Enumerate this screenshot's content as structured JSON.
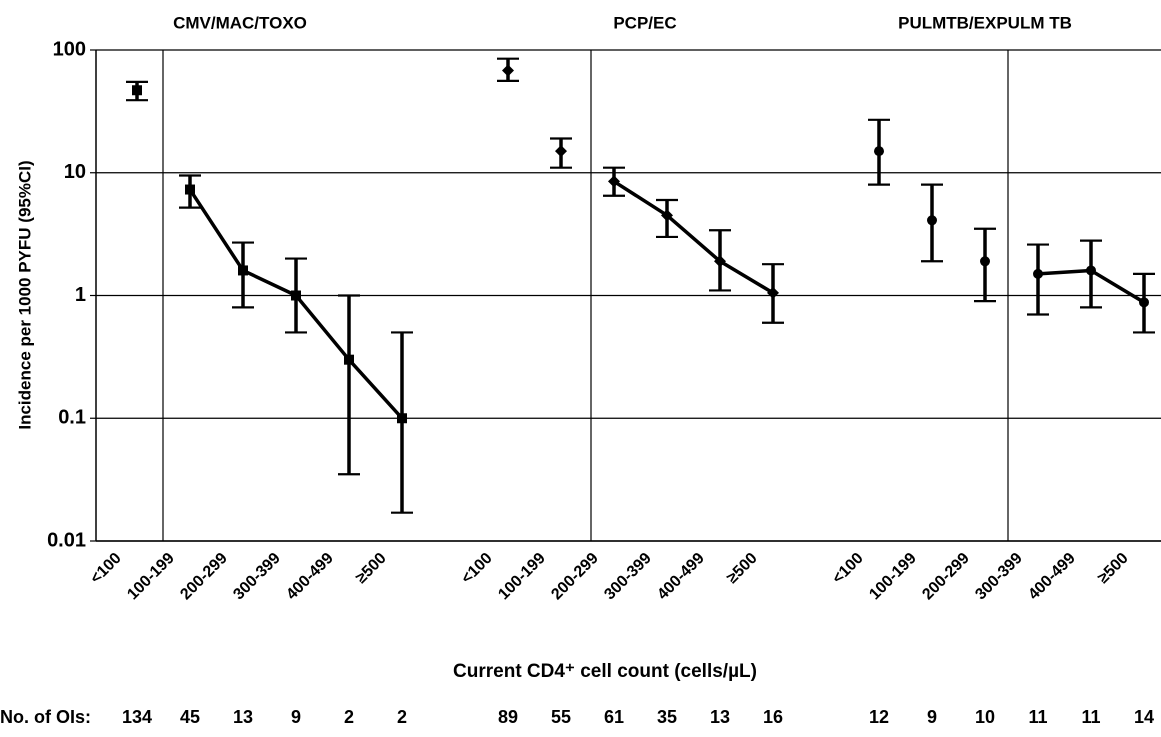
{
  "chart_data": {
    "type": "line",
    "x_label": "Current CD4⁺ cell count (cells/µL)",
    "y_label": "Incidence per 1000 PYFU (95%CI)",
    "groups": [
      "CMV/MAC/TOXO",
      "PCP/EC",
      "PULMTB/EXPULM TB"
    ],
    "categories": [
      "<100",
      "100-199",
      "200-299",
      "300-399",
      "400-499",
      "≥500",
      null,
      "<100",
      "100-199",
      "200-299",
      "300-399",
      "400-499",
      "≥500",
      null,
      "<100",
      "100-199",
      "200-299",
      "300-399",
      "400-499",
      "≥500"
    ],
    "counts_label": "No. of OIs:",
    "counts": [
      134,
      45,
      13,
      9,
      2,
      2,
      null,
      89,
      55,
      61,
      35,
      13,
      16,
      null,
      12,
      9,
      10,
      11,
      11,
      14
    ],
    "log_scale": true,
    "ylim": [
      0.01,
      100
    ],
    "yticks": [
      0.01,
      0.1,
      1,
      10,
      100
    ],
    "grid": true,
    "series": [
      {
        "marker": "square",
        "line": false,
        "color": "#000000",
        "values": [
          47,
          null,
          null,
          null,
          null,
          null,
          null,
          null,
          null,
          null,
          null,
          null,
          null,
          null,
          null,
          null,
          null,
          null,
          null,
          null
        ],
        "lower": [
          39,
          null,
          null,
          null,
          null,
          null,
          null,
          null,
          null,
          null,
          null,
          null,
          null,
          null,
          null,
          null,
          null,
          null,
          null,
          null
        ],
        "upper": [
          55,
          null,
          null,
          null,
          null,
          null,
          null,
          null,
          null,
          null,
          null,
          null,
          null,
          null,
          null,
          null,
          null,
          null,
          null,
          null
        ]
      },
      {
        "marker": "square",
        "line": true,
        "color": "#000000",
        "values": [
          null,
          7.3,
          1.6,
          1.0,
          0.3,
          0.1,
          null,
          null,
          null,
          null,
          null,
          null,
          null,
          null,
          null,
          null,
          null,
          null,
          null,
          null
        ],
        "lower": [
          null,
          5.2,
          0.8,
          0.5,
          0.035,
          0.017,
          null,
          null,
          null,
          null,
          null,
          null,
          null,
          null,
          null,
          null,
          null,
          null,
          null,
          null
        ],
        "upper": [
          null,
          9.5,
          2.7,
          2.0,
          1.0,
          0.5,
          null,
          null,
          null,
          null,
          null,
          null,
          null,
          null,
          null,
          null,
          null,
          null,
          null,
          null
        ]
      },
      {
        "marker": "diamond",
        "line": false,
        "color": "#000000",
        "values": [
          null,
          null,
          null,
          null,
          null,
          null,
          null,
          68,
          15,
          null,
          null,
          null,
          null,
          null,
          null,
          null,
          null,
          null,
          null,
          null
        ],
        "lower": [
          null,
          null,
          null,
          null,
          null,
          null,
          null,
          56,
          11,
          null,
          null,
          null,
          null,
          null,
          null,
          null,
          null,
          null,
          null,
          null
        ],
        "upper": [
          null,
          null,
          null,
          null,
          null,
          null,
          null,
          85,
          19,
          null,
          null,
          null,
          null,
          null,
          null,
          null,
          null,
          null,
          null,
          null
        ]
      },
      {
        "marker": "diamond",
        "line": true,
        "color": "#000000",
        "values": [
          null,
          null,
          null,
          null,
          null,
          null,
          null,
          null,
          null,
          8.5,
          4.5,
          1.9,
          1.05,
          null,
          null,
          null,
          null,
          null,
          null,
          null
        ],
        "lower": [
          null,
          null,
          null,
          null,
          null,
          null,
          null,
          null,
          null,
          6.5,
          3.0,
          1.1,
          0.6,
          null,
          null,
          null,
          null,
          null,
          null,
          null
        ],
        "upper": [
          null,
          null,
          null,
          null,
          null,
          null,
          null,
          null,
          null,
          11,
          6.0,
          3.4,
          1.8,
          null,
          null,
          null,
          null,
          null,
          null,
          null
        ]
      },
      {
        "marker": "circle",
        "line": false,
        "color": "#000000",
        "values": [
          null,
          null,
          null,
          null,
          null,
          null,
          null,
          null,
          null,
          null,
          null,
          null,
          null,
          null,
          15,
          4.1,
          1.9,
          null,
          null,
          null
        ],
        "lower": [
          null,
          null,
          null,
          null,
          null,
          null,
          null,
          null,
          null,
          null,
          null,
          null,
          null,
          null,
          8,
          1.9,
          0.9,
          null,
          null,
          null
        ],
        "upper": [
          null,
          null,
          null,
          null,
          null,
          null,
          null,
          null,
          null,
          null,
          null,
          null,
          null,
          null,
          27,
          8,
          3.5,
          null,
          null,
          null
        ]
      },
      {
        "marker": "circle",
        "line": true,
        "color": "#000000",
        "values": [
          null,
          null,
          null,
          null,
          null,
          null,
          null,
          null,
          null,
          null,
          null,
          null,
          null,
          null,
          null,
          null,
          null,
          1.5,
          1.6,
          0.88
        ],
        "lower": [
          null,
          null,
          null,
          null,
          null,
          null,
          null,
          null,
          null,
          null,
          null,
          null,
          null,
          null,
          null,
          null,
          null,
          0.7,
          0.8,
          0.5
        ],
        "upper": [
          null,
          null,
          null,
          null,
          null,
          null,
          null,
          null,
          null,
          null,
          null,
          null,
          null,
          null,
          null,
          null,
          null,
          2.6,
          2.8,
          1.5
        ]
      }
    ]
  }
}
